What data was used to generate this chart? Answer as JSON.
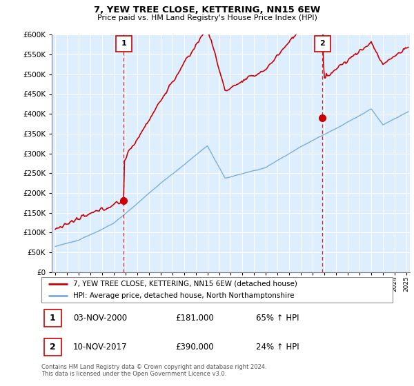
{
  "title": "7, YEW TREE CLOSE, KETTERING, NN15 6EW",
  "subtitle": "Price paid vs. HM Land Registry's House Price Index (HPI)",
  "legend_line1": "7, YEW TREE CLOSE, KETTERING, NN15 6EW (detached house)",
  "legend_line2": "HPI: Average price, detached house, North Northamptonshire",
  "footnote": "Contains HM Land Registry data © Crown copyright and database right 2024.\nThis data is licensed under the Open Government Licence v3.0.",
  "marker1_label": "1",
  "marker1_date": "03-NOV-2000",
  "marker1_price": "£181,000",
  "marker1_hpi": "65% ↑ HPI",
  "marker2_label": "2",
  "marker2_date": "10-NOV-2017",
  "marker2_price": "£390,000",
  "marker2_hpi": "24% ↑ HPI",
  "hpi_color": "#7aaddc",
  "price_color": "#cc0000",
  "bg_color": "#ddeeff",
  "dashed_color": "#cc0000",
  "ylim_min": 0,
  "ylim_max": 600000,
  "ylabel_ticks": [
    0,
    50000,
    100000,
    150000,
    200000,
    250000,
    300000,
    350000,
    400000,
    450000,
    500000,
    550000,
    600000
  ],
  "xlim_min": 1994.7,
  "xlim_max": 2025.3,
  "sale1_t": 2000.84,
  "sale1_p": 181000,
  "sale2_t": 2017.84,
  "sale2_p": 390000
}
